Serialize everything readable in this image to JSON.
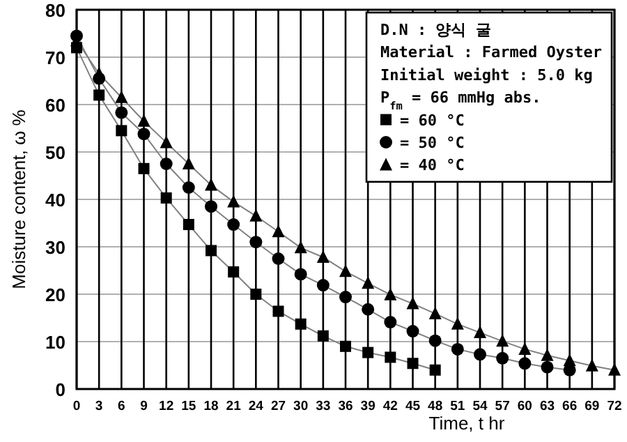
{
  "chart_data": {
    "type": "line",
    "xlabel": "Time, t  hr",
    "ylabel": "Moisture content, ω %",
    "xlim": [
      0,
      72
    ],
    "xticks": [
      0,
      3,
      6,
      9,
      12,
      15,
      18,
      21,
      24,
      27,
      30,
      33,
      36,
      39,
      42,
      45,
      48,
      51,
      54,
      57,
      60,
      63,
      66,
      69,
      72
    ],
    "ylim": [
      0,
      80
    ],
    "yticks": [
      0,
      10,
      20,
      30,
      40,
      50,
      60,
      70,
      80
    ],
    "grid": true,
    "legend": "top right",
    "line_style": "solid",
    "legend_title": "D.N : 양식 굴",
    "annotations": [
      "Material : Farmed Oyster",
      "Initial weight : 5.0 kg",
      "P$_{fm}$ = 66 mmHg abs."
    ],
    "series": [
      {
        "name": "= 60 °C",
        "color": "#000000",
        "marker": "square",
        "x": [
          0,
          3,
          6,
          9,
          12,
          15,
          18,
          21,
          24,
          27,
          30,
          33,
          36,
          39,
          42,
          45,
          48
        ],
        "values": [
          72,
          62,
          54.5,
          46.5,
          40.3,
          34.7,
          29.2,
          24.7,
          20,
          16.4,
          13.7,
          11.2,
          9,
          7.7,
          6.7,
          5.4,
          4
        ]
      },
      {
        "name": "= 50 °C",
        "color": "#000000",
        "marker": "circle",
        "x": [
          0,
          3,
          6,
          9,
          12,
          15,
          18,
          21,
          24,
          27,
          30,
          33,
          36,
          39,
          42,
          45,
          48,
          51,
          54,
          57,
          60,
          63,
          66
        ],
        "values": [
          74.5,
          65.5,
          58.3,
          53.8,
          47.5,
          42.5,
          38.5,
          34.7,
          31,
          27.5,
          24.2,
          21.9,
          19.4,
          16.8,
          14.1,
          12.2,
          10.2,
          8.4,
          7.3,
          6.5,
          5.4,
          4.6,
          4
        ]
      },
      {
        "name": "= 40 °C",
        "color": "#000000",
        "marker": "triangle",
        "x": [
          0,
          3,
          6,
          9,
          12,
          15,
          18,
          21,
          24,
          27,
          30,
          33,
          36,
          39,
          42,
          45,
          48,
          51,
          54,
          57,
          60,
          63,
          66,
          69,
          72
        ],
        "values": [
          73.5,
          66.5,
          61.5,
          56.5,
          52,
          47.5,
          43,
          39.5,
          36.5,
          33.2,
          29.8,
          27.8,
          24.8,
          22.3,
          19.9,
          18,
          15.9,
          13.7,
          11.9,
          10.1,
          8.4,
          7.1,
          6,
          4.9,
          4
        ]
      }
    ]
  }
}
